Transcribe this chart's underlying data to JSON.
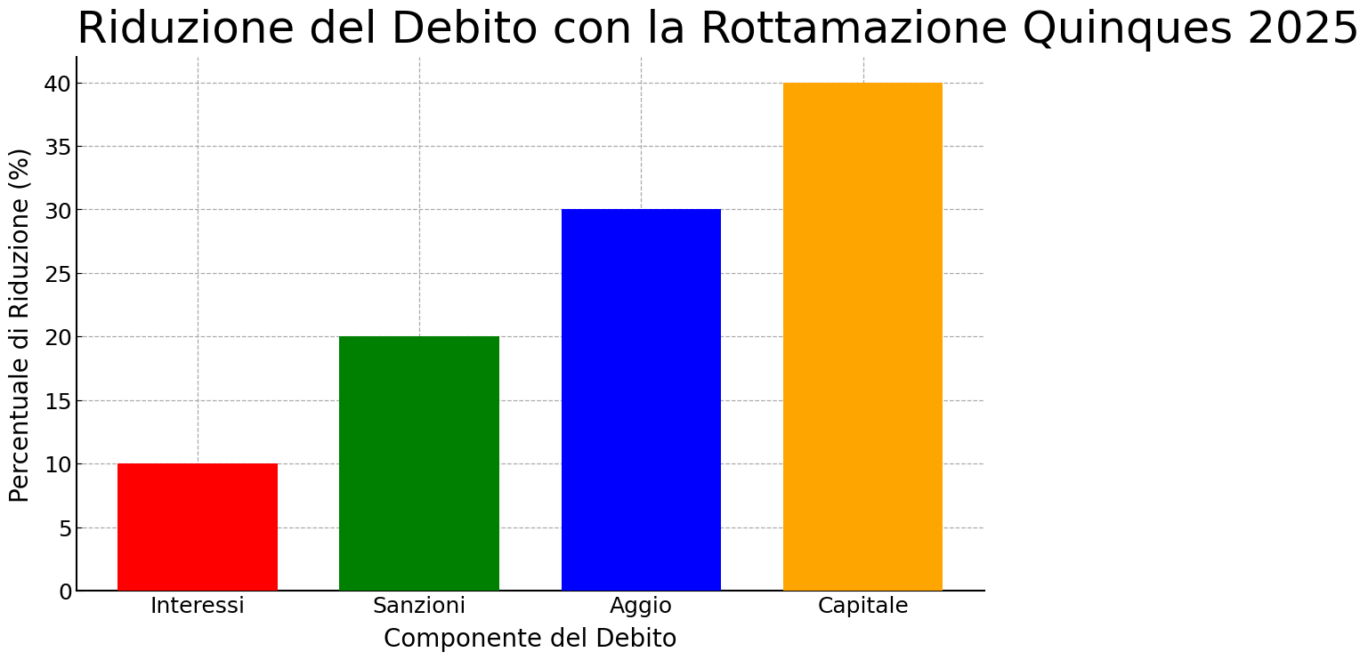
{
  "title": "Riduzione del Debito con la Rottamazione Quinques 2025",
  "categories": [
    "Interessi",
    "Sanzioni",
    "Aggio",
    "Capitale"
  ],
  "values": [
    10,
    20,
    30,
    40
  ],
  "bar_colors": [
    "red",
    "green",
    "blue",
    "orange"
  ],
  "xlabel": "Componente del Debito",
  "ylabel": "Percentuale di Riduzione (%)",
  "ylim": [
    0,
    42
  ],
  "yticks": [
    0,
    5,
    10,
    15,
    20,
    25,
    30,
    35,
    40
  ],
  "title_fontsize": 36,
  "axis_label_fontsize": 20,
  "tick_fontsize": 18,
  "background_color": "#ffffff",
  "grid_color": "#aaaaaa",
  "bar_width": 0.72
}
